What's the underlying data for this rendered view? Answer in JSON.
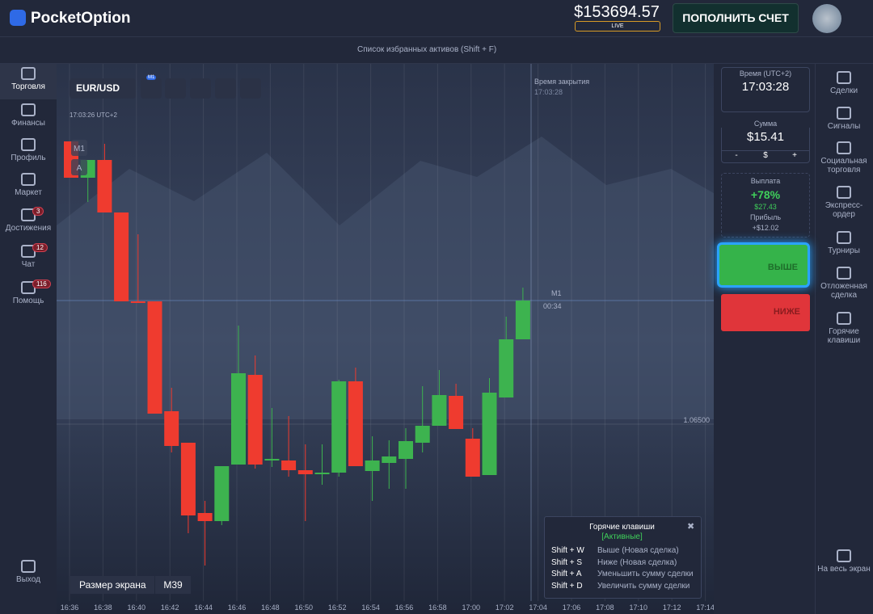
{
  "header": {
    "logo": "PocketOption",
    "balance": "$153694.57",
    "account": "LIVE",
    "deposit": "ПОПОЛНИТЬ СЧЕТ"
  },
  "favorites_bar": "Список избранных активов (Shift + F)",
  "left_menu": [
    {
      "label": "Торговля"
    },
    {
      "label": "Финансы"
    },
    {
      "label": "Профиль"
    },
    {
      "label": "Маркет"
    },
    {
      "label": "Достижения",
      "badge": "3"
    },
    {
      "label": "Чат",
      "badge": "12"
    },
    {
      "label": "Помощь",
      "badge": "116"
    }
  ],
  "exit": "Выход",
  "toolbar": {
    "asset": "EUR/USD",
    "timeframe": "M1"
  },
  "chart": {
    "timestamp": "17:03:26 UTC+2",
    "overlay": [
      "M1",
      "A"
    ],
    "expiry_label": "Время закрытия",
    "expiry_time": "17:03:28",
    "price_line_label": "M1",
    "countdown": "00:34",
    "price_label": {
      "value": 1.065,
      "label": "1.06500"
    },
    "times": [
      "16:36",
      "16:38",
      "16:40",
      "16:42",
      "16:44",
      "16:46",
      "16:48",
      "16:50",
      "16:52",
      "16:54",
      "16:56",
      "16:58",
      "17:00",
      "17:02",
      "17:04",
      "17:06",
      "17:08",
      "17:10",
      "17:12",
      "17:14"
    ],
    "candles": [
      {
        "open": 1.0685,
        "high": 1.0685,
        "low": 1.06805,
        "close": 1.06805
      },
      {
        "open": 1.06805,
        "high": 1.06827,
        "low": 1.06775,
        "close": 1.06827
      },
      {
        "open": 1.06827,
        "high": 1.06847,
        "low": 1.06762,
        "close": 1.06762
      },
      {
        "open": 1.06762,
        "high": 1.06762,
        "low": 1.06652,
        "close": 1.06652
      },
      {
        "open": 1.06652,
        "high": 1.06735,
        "low": 1.0665,
        "close": 1.0665
      },
      {
        "open": 1.06652,
        "high": 1.06652,
        "low": 1.06513,
        "close": 1.06513
      },
      {
        "open": 1.06516,
        "high": 1.06545,
        "low": 1.06465,
        "close": 1.06473
      },
      {
        "open": 1.06477,
        "high": 1.06477,
        "low": 1.06365,
        "close": 1.06387
      },
      {
        "open": 1.0639,
        "high": 1.06405,
        "low": 1.06325,
        "close": 1.0638
      },
      {
        "open": 1.0638,
        "high": 1.06448,
        "low": 1.06375,
        "close": 1.06448
      },
      {
        "open": 1.0645,
        "high": 1.06622,
        "low": 1.0645,
        "close": 1.06563
      },
      {
        "open": 1.06561,
        "high": 1.06585,
        "low": 1.06445,
        "close": 1.0645
      },
      {
        "open": 1.06455,
        "high": 1.0652,
        "low": 1.06447,
        "close": 1.06457
      },
      {
        "open": 1.06455,
        "high": 1.0651,
        "low": 1.06435,
        "close": 1.06443
      },
      {
        "open": 1.06443,
        "high": 1.06475,
        "low": 1.0638,
        "close": 1.06438
      },
      {
        "open": 1.06438,
        "high": 1.06475,
        "low": 1.06425,
        "close": 1.0644
      },
      {
        "open": 1.0644,
        "high": 1.06555,
        "low": 1.06435,
        "close": 1.06553
      },
      {
        "open": 1.06553,
        "high": 1.0657,
        "low": 1.06448,
        "close": 1.06448
      },
      {
        "open": 1.06442,
        "high": 1.06485,
        "low": 1.06405,
        "close": 1.06455
      },
      {
        "open": 1.06452,
        "high": 1.0648,
        "low": 1.0642,
        "close": 1.0646
      },
      {
        "open": 1.06457,
        "high": 1.06495,
        "low": 1.0642,
        "close": 1.06479
      },
      {
        "open": 1.06477,
        "high": 1.06547,
        "low": 1.06465,
        "close": 1.06498
      },
      {
        "open": 1.06498,
        "high": 1.06567,
        "low": 1.06498,
        "close": 1.06536
      },
      {
        "open": 1.06535,
        "high": 1.0655,
        "low": 1.06494,
        "close": 1.06494
      },
      {
        "open": 1.06482,
        "high": 1.06495,
        "low": 1.06435,
        "close": 1.06435
      },
      {
        "open": 1.06437,
        "high": 1.06557,
        "low": 1.06437,
        "close": 1.06539
      },
      {
        "open": 1.06533,
        "high": 1.06633,
        "low": 1.06533,
        "close": 1.06605
      },
      {
        "open": 1.06605,
        "high": 1.06669,
        "low": 1.06605,
        "close": 1.06653
      }
    ]
  },
  "screen_size": {
    "label": "Размер экрана",
    "value": "M39"
  },
  "hotkeys": {
    "title": "Горячие клавиши",
    "status": "[Активные]",
    "rows": [
      [
        "Shift + W",
        "Выше (Новая сделка)"
      ],
      [
        "Shift + S",
        "Ниже (Новая сделка)"
      ],
      [
        "Shift + A",
        "Уменьшить сумму сделки"
      ],
      [
        "Shift + D",
        "Увеличить сумму сделки"
      ]
    ]
  },
  "trade_panel": {
    "time_label": "Время (UTC+2)",
    "time": "17:03:28",
    "amount_label": "Сумма",
    "amount": "$15.41",
    "amount_buttons": [
      "-",
      "$",
      "+"
    ],
    "payout_label": "Выплата",
    "payout": "+78%",
    "payout_amount": "$27.43",
    "profit_label": "Прибыль",
    "profit": "+$12.02",
    "buy": "ВЫШЕ",
    "sell": "НИЖЕ"
  },
  "right_menu": [
    "Сделки",
    "Сигналы",
    "Социальная торговля",
    "Экспресс-ордер",
    "Турниры",
    "Отложенная сделка",
    "Горячие клавиши"
  ],
  "fullscreen": "На весь экран"
}
